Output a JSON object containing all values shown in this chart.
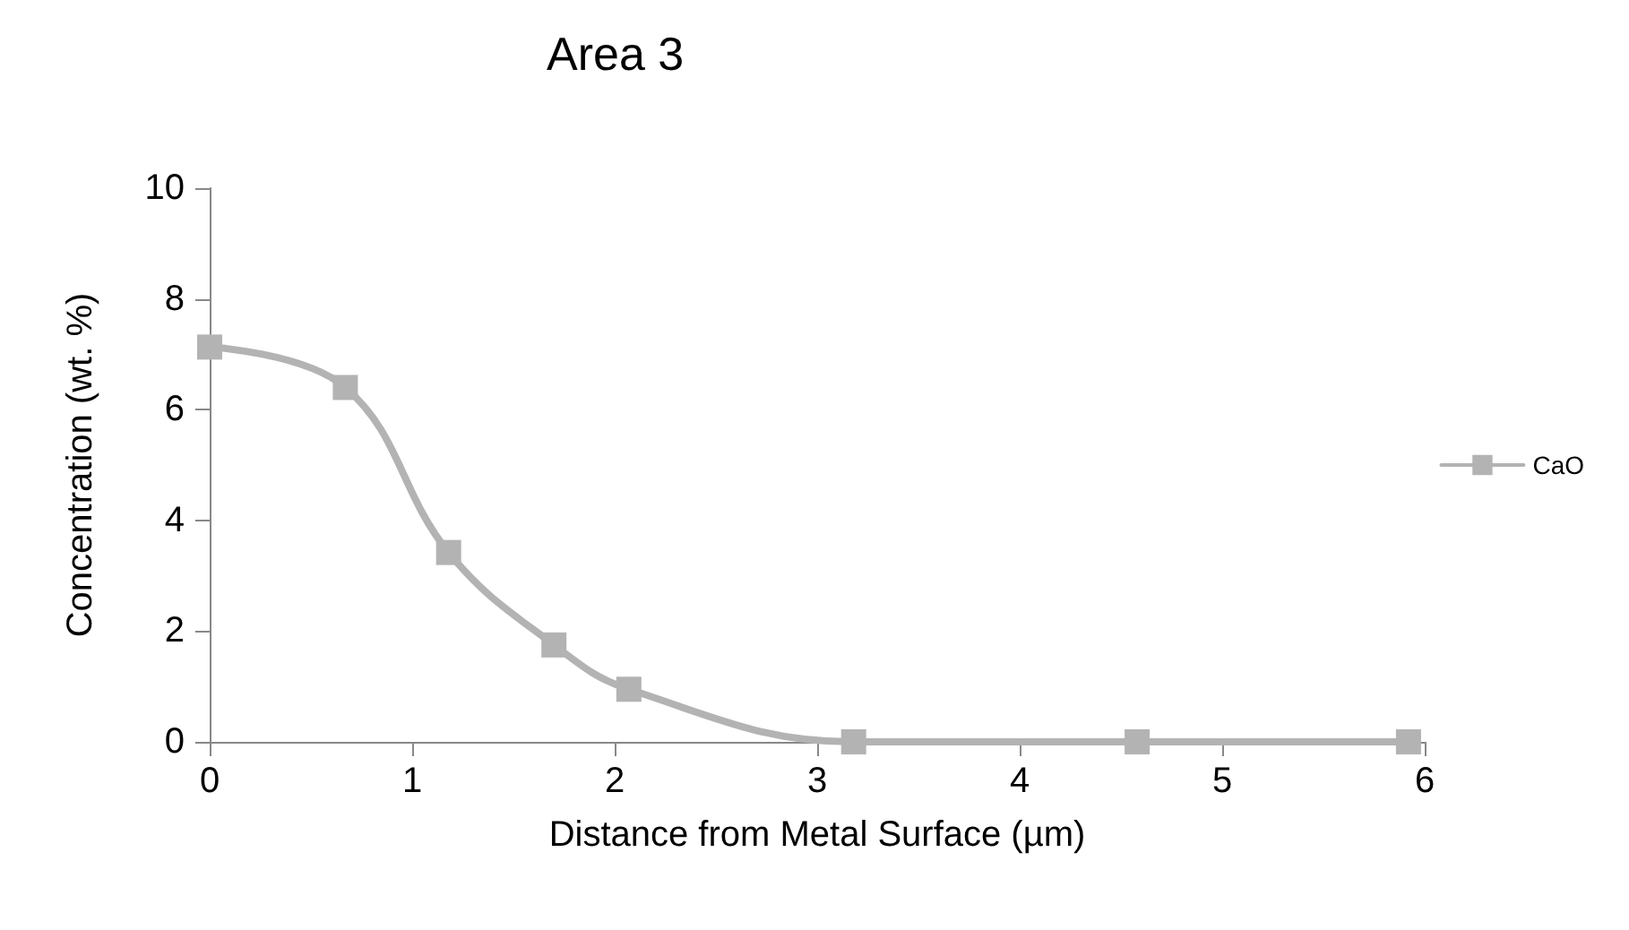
{
  "chart_data": {
    "type": "line",
    "title": "Area 3",
    "xlabel": "Distance from Metal Surface (µm)",
    "ylabel": "Concentration (wt. %)",
    "x": [
      0,
      0.67,
      1.18,
      1.7,
      2.07,
      3.18,
      4.58,
      5.92
    ],
    "series": [
      {
        "name": "CaO",
        "color": "#b3b3b3",
        "values": [
          7.13,
          6.4,
          3.42,
          1.75,
          0.95,
          0,
          0,
          0
        ]
      }
    ],
    "xlim": [
      0,
      6
    ],
    "xticks": [
      0,
      1,
      2,
      3,
      4,
      5,
      6
    ],
    "ylim": [
      0,
      10
    ],
    "yticks": [
      0,
      2,
      4,
      6,
      8,
      10
    ],
    "grid": false,
    "legend": "right",
    "marker": "square",
    "line_style": "solid"
  }
}
